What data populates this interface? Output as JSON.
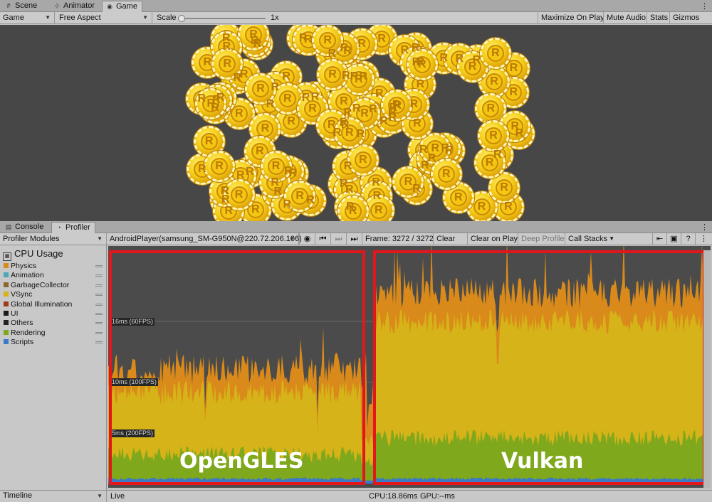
{
  "top_tabs": [
    {
      "label": "Scene",
      "icon": "grid-icon"
    },
    {
      "label": "Animator",
      "icon": "animator-icon"
    },
    {
      "label": "Game",
      "icon": "gamepad-icon"
    }
  ],
  "game_toolbar": {
    "display": "Game",
    "aspect": "Free Aspect",
    "scale_label": "Scale",
    "scale_value": "1x",
    "maximize": "Maximize On Play",
    "mute": "Mute Audio",
    "stats": "Stats",
    "gizmos": "Gizmos"
  },
  "coin_label": "R",
  "bottom_tabs": [
    {
      "label": "Console",
      "icon": "console-icon"
    },
    {
      "label": "Profiler",
      "icon": "profiler-icon"
    }
  ],
  "profiler_toolbar": {
    "modules": "Profiler Modules",
    "target": "AndroidPlayer(samsung_SM-G950N@220.72.206.106)",
    "frame": "Frame: 3272 / 3272",
    "clear": "Clear",
    "clear_on_play": "Clear on Play",
    "deep_profile": "Deep Profile",
    "call_stacks": "Call Stacks"
  },
  "cpu_module": {
    "title": "CPU Usage",
    "legend": [
      {
        "label": "Physics",
        "color": "#d98a1a"
      },
      {
        "label": "Animation",
        "color": "#4aa7b8"
      },
      {
        "label": "GarbageCollector",
        "color": "#8a6a2a"
      },
      {
        "label": "VSync",
        "color": "#d6b318"
      },
      {
        "label": "Global Illumination",
        "color": "#a03a1a"
      },
      {
        "label": "UI",
        "color": "#1a1a1a"
      },
      {
        "label": "Others",
        "color": "#222222"
      },
      {
        "label": "Rendering",
        "color": "#7fa81c"
      },
      {
        "label": "Scripts",
        "color": "#3a7ac8"
      }
    ]
  },
  "chart_data": {
    "type": "area",
    "title": "CPU Usage",
    "ylabel": "ms",
    "ylim": [
      0,
      23
    ],
    "thresholds": [
      {
        "label": "16ms (60FPS)",
        "value": 16
      },
      {
        "label": "10ms (100FPS)",
        "value": 10
      },
      {
        "label": "5ms (200FPS)",
        "value": 5
      }
    ],
    "annotations": [
      "OpenGLES",
      "Vulkan"
    ],
    "segments": [
      {
        "name": "OpenGLES",
        "x_range": [
          0,
          0.42
        ],
        "rendering_ms": 2.9,
        "vsync_top_ms": 9.0,
        "physics_top_ms": 11.3
      },
      {
        "name": "Vulkan",
        "x_range": [
          0.44,
          1.0
        ],
        "rendering_ms": 4.5,
        "vsync_top_ms": 16.0,
        "physics_top_ms": 18.8
      }
    ]
  },
  "status": {
    "view": "Timeline",
    "mode": "Live",
    "cpu": "CPU:18.86ms",
    "gpu": "GPU:--ms"
  }
}
